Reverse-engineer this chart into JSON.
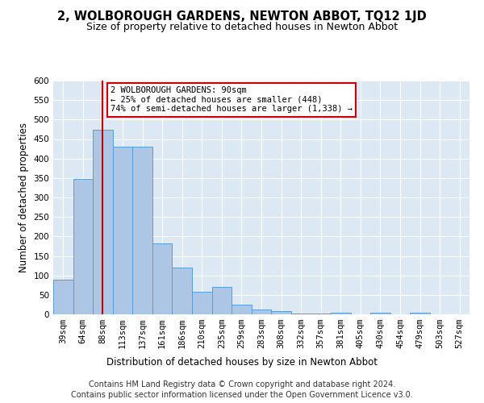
{
  "title": "2, WOLBOROUGH GARDENS, NEWTON ABBOT, TQ12 1JD",
  "subtitle": "Size of property relative to detached houses in Newton Abbot",
  "xlabel": "Distribution of detached houses by size in Newton Abbot",
  "ylabel": "Number of detached properties",
  "footer_line1": "Contains HM Land Registry data © Crown copyright and database right 2024.",
  "footer_line2": "Contains public sector information licensed under the Open Government Licence v3.0.",
  "categories": [
    "39sqm",
    "64sqm",
    "88sqm",
    "113sqm",
    "137sqm",
    "161sqm",
    "186sqm",
    "210sqm",
    "235sqm",
    "259sqm",
    "283sqm",
    "308sqm",
    "332sqm",
    "357sqm",
    "381sqm",
    "405sqm",
    "430sqm",
    "454sqm",
    "479sqm",
    "503sqm",
    "527sqm"
  ],
  "values": [
    89,
    348,
    474,
    431,
    431,
    183,
    120,
    57,
    70,
    25,
    12,
    8,
    2,
    2,
    5,
    0,
    5,
    0,
    5,
    0,
    0
  ],
  "bar_color": "#adc6e5",
  "bar_edge_color": "#5b9bd5",
  "vline_x": 2,
  "vline_color": "#cc0000",
  "annotation_line1": "2 WOLBOROUGH GARDENS: 90sqm",
  "annotation_line2": "← 25% of detached houses are smaller (448)",
  "annotation_line3": "74% of semi-detached houses are larger (1,338) →",
  "annotation_box_color": "#ffffff",
  "annotation_box_edgecolor": "#cc0000",
  "ylim": [
    0,
    600
  ],
  "yticks": [
    0,
    50,
    100,
    150,
    200,
    250,
    300,
    350,
    400,
    450,
    500,
    550,
    600
  ],
  "background_color": "#dce9f5",
  "grid_color": "#ffffff",
  "title_fontsize": 10.5,
  "subtitle_fontsize": 9,
  "axis_label_fontsize": 8.5,
  "tick_fontsize": 7.5,
  "annotation_fontsize": 7.5,
  "footer_fontsize": 7
}
